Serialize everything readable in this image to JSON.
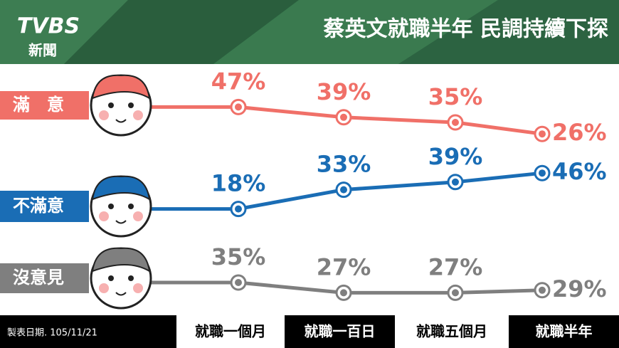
{
  "logo": "TVBS",
  "logo_sub": "新聞",
  "chart_data": {
    "type": "line",
    "title": "蔡英文就職半年 民調持續下探",
    "categories": [
      "就職一個月",
      "就職一百日",
      "就職五個月",
      "就職半年"
    ],
    "series": [
      {
        "name": "滿　意",
        "color": "#f07068",
        "values": [
          47,
          39,
          35,
          26
        ],
        "value_labels": [
          "47%",
          "39%",
          "35%",
          "26%"
        ]
      },
      {
        "name": "不滿意",
        "color": "#1a6db5",
        "values": [
          18,
          33,
          39,
          46
        ],
        "value_labels": [
          "18%",
          "33%",
          "39%",
          "46%"
        ]
      },
      {
        "name": "沒意見",
        "color": "#7f7f7f",
        "values": [
          35,
          27,
          27,
          29
        ],
        "value_labels": [
          "35%",
          "27%",
          "27%",
          "29%"
        ]
      }
    ],
    "source": "製表日期. 105/11/21"
  }
}
